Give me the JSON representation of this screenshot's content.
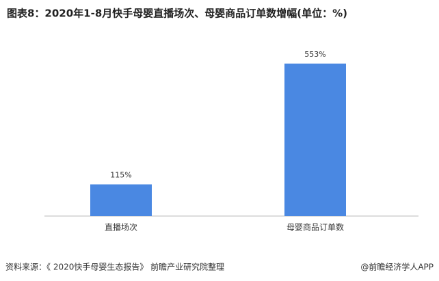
{
  "chart_data": {
    "type": "bar",
    "title": "图表8：2020年1-8月快手母婴直播场次、母婴商品订单数增幅(单位：%)",
    "categories": [
      "直播场次",
      "母婴商品订单数"
    ],
    "values": [
      115,
      553
    ],
    "value_labels": [
      "115%",
      "553%"
    ],
    "color": "#4a88e2"
  },
  "footer": {
    "source": "资料来源：《 2020快手母婴生态报告》 前瞻产业研究院整理",
    "credit": "@前瞻经济学人APP"
  }
}
